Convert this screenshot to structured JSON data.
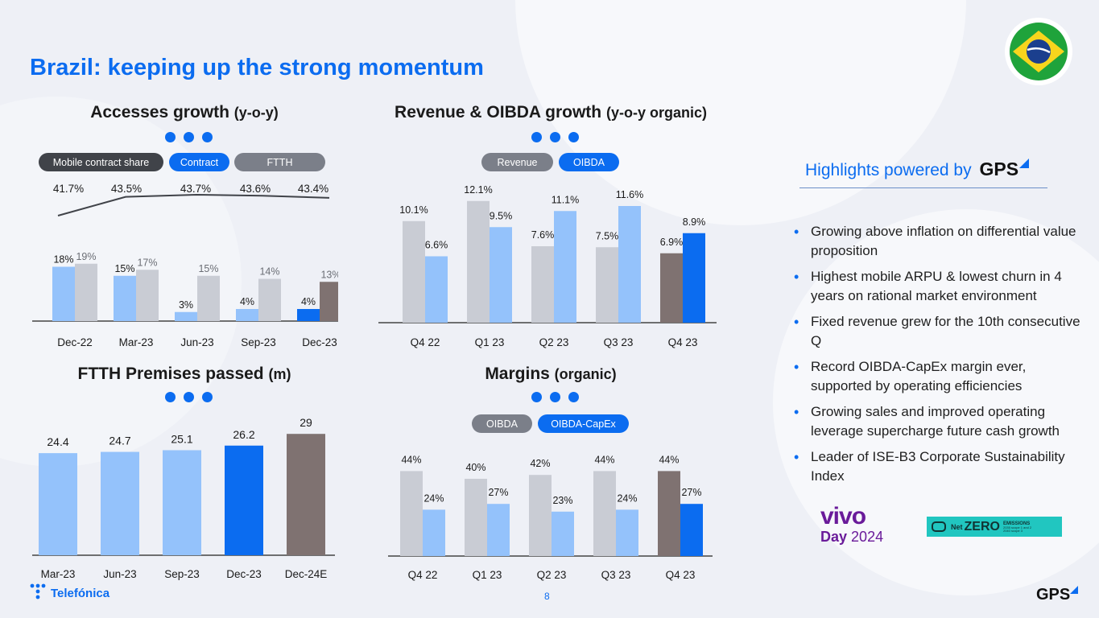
{
  "slide": {
    "title": "Brazil: keeping up the strong momentum",
    "page_number": "8",
    "highlights_title": "Highlights powered by",
    "highlights_logo": "GPS",
    "highlights": [
      "Growing above inflation on differential value proposition",
      "Highest mobile ARPU & lowest churn in 4 years on rational market environment",
      "Fixed revenue grew for the 10th consecutive Q",
      "Record OIBDA-CapEx margin ever, supported by operating efficiencies",
      "Growing sales and improved operating leverage supercharge future cash growth",
      "Leader of ISE-B3 Corporate Sustainability Index"
    ],
    "telefonica_logo": "Telefónica",
    "gps_logo": "GPS",
    "vivo_logo_top": "vivo",
    "vivo_logo_day": "Day",
    "vivo_logo_year": "2024",
    "netzero_net": "Net",
    "netzero_zero": "ZERO",
    "netzero_emissions": "EMISSIONS",
    "netzero_line1": "2035 scope 1 and 2",
    "netzero_line2": "2040 scope 3",
    "colors": {
      "accent": "#0b6cf0",
      "light_blue": "#94c2fb",
      "grey": "#c9ccd4",
      "taupe": "#7f7271",
      "dark": "#404349"
    }
  },
  "chart_data": [
    {
      "id": "accesses",
      "type": "bar",
      "title": "Accesses growth",
      "title_suffix": "(y-o-y)",
      "legend": [
        "Mobile contract share",
        "Contract",
        "FTTH"
      ],
      "categories": [
        "Dec-22",
        "Mar-23",
        "Jun-23",
        "Sep-23",
        "Dec-23"
      ],
      "series": [
        {
          "name": "Contract",
          "values": [
            18,
            15,
            3,
            4,
            4
          ],
          "labels": [
            "18%",
            "15%",
            "3%",
            "4%",
            "4%"
          ]
        },
        {
          "name": "FTTH",
          "values": [
            19,
            17,
            15,
            14,
            13
          ],
          "labels": [
            "19%",
            "17%",
            "15%",
            "14%",
            "13%"
          ]
        }
      ],
      "line": {
        "name": "Mobile contract share",
        "values": [
          41.7,
          43.5,
          43.7,
          43.6,
          43.4
        ],
        "labels": [
          "41.7%",
          "43.5%",
          "43.7%",
          "43.6%",
          "43.4%"
        ]
      }
    },
    {
      "id": "revenue",
      "type": "bar",
      "title": "Revenue & OIBDA growth",
      "title_suffix": "(y-o-y organic)",
      "legend": [
        "Revenue",
        "OIBDA"
      ],
      "categories": [
        "Q4 22",
        "Q1 23",
        "Q2 23",
        "Q3 23",
        "Q4 23"
      ],
      "series": [
        {
          "name": "Revenue",
          "values": [
            10.1,
            12.1,
            7.6,
            7.5,
            6.9
          ],
          "labels": [
            "10.1%",
            "12.1%",
            "7.6%",
            "7.5%",
            "6.9%"
          ]
        },
        {
          "name": "OIBDA",
          "values": [
            6.6,
            9.5,
            11.1,
            11.6,
            8.9
          ],
          "labels": [
            "6.6%",
            "9.5%",
            "11.1%",
            "11.6%",
            "8.9%"
          ]
        }
      ]
    },
    {
      "id": "ftth",
      "type": "bar",
      "title": "FTTH Premises passed",
      "title_suffix": "(m)",
      "categories": [
        "Mar-23",
        "Jun-23",
        "Sep-23",
        "Dec-23",
        "Dec-24E"
      ],
      "values": [
        24.4,
        24.7,
        25.1,
        26.2,
        29
      ],
      "labels": [
        "24.4",
        "24.7",
        "25.1",
        "26.2",
        "29"
      ]
    },
    {
      "id": "margins",
      "type": "bar",
      "title": "Margins",
      "title_suffix": "(organic)",
      "legend": [
        "OIBDA",
        "OIBDA-CapEx"
      ],
      "categories": [
        "Q4 22",
        "Q1 23",
        "Q2 23",
        "Q3 23",
        "Q4 23"
      ],
      "series": [
        {
          "name": "OIBDA",
          "values": [
            44,
            40,
            42,
            44,
            44
          ],
          "labels": [
            "44%",
            "40%",
            "42%",
            "44%",
            "44%"
          ]
        },
        {
          "name": "OIBDA-CapEx",
          "values": [
            24,
            27,
            23,
            24,
            27
          ],
          "labels": [
            "24%",
            "27%",
            "23%",
            "24%",
            "27%"
          ]
        }
      ]
    }
  ]
}
